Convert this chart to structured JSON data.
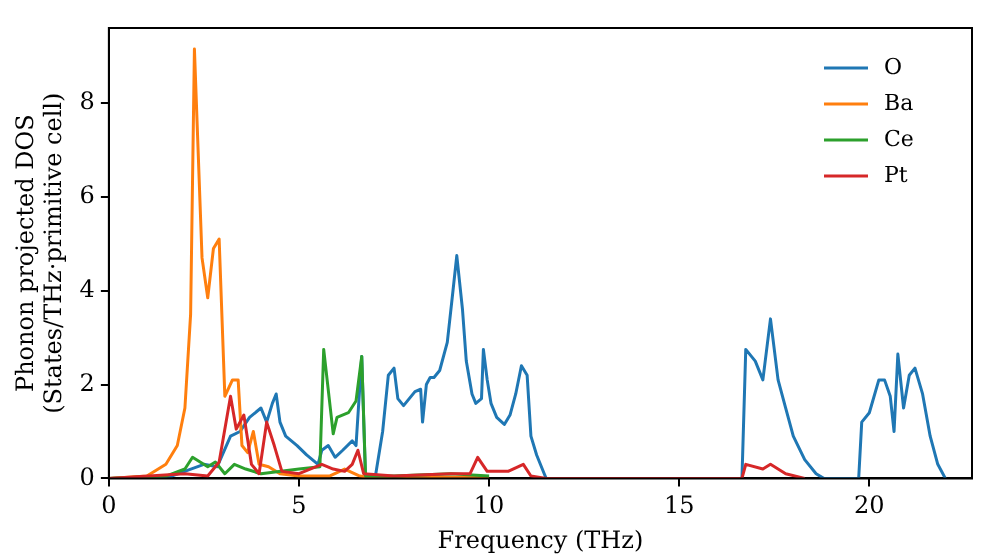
{
  "chart_data": {
    "type": "line",
    "xlabel": "Frequency (THz)",
    "ylabel": "Phonon projected DOS\n(States/THz·primitive cell)",
    "xlim": [
      0,
      22.7
    ],
    "ylim": [
      0,
      9.6
    ],
    "xticks": [
      0,
      5,
      10,
      15,
      20
    ],
    "yticks": [
      0,
      2,
      4,
      6,
      8
    ],
    "grid": false,
    "legend": "top right",
    "marker": "none",
    "line_style": "solid",
    "series": [
      {
        "name": "O",
        "color": "#1f77b4",
        "x": [
          0,
          1.65,
          2.5,
          2.85,
          3.2,
          3.45,
          3.7,
          4.0,
          4.15,
          4.3,
          4.4,
          4.5,
          4.65,
          4.95,
          5.2,
          5.5,
          5.6,
          5.77,
          5.95,
          6.15,
          6.4,
          6.5,
          6.65,
          6.75,
          7.0,
          7.2,
          7.35,
          7.5,
          7.6,
          7.75,
          7.9,
          8.05,
          8.2,
          8.25,
          8.35,
          8.45,
          8.55,
          8.7,
          8.9,
          9.05,
          9.15,
          9.3,
          9.4,
          9.55,
          9.65,
          9.8,
          9.85,
          9.95,
          10.05,
          10.2,
          10.4,
          10.55,
          10.7,
          10.85,
          11.0,
          11.1,
          11.25,
          11.45,
          11.5,
          16.65,
          16.75,
          17.0,
          17.2,
          17.4,
          17.6,
          17.8,
          18.0,
          18.3,
          18.6,
          18.8,
          19.72,
          19.8,
          20.0,
          20.25,
          20.4,
          20.55,
          20.65,
          20.75,
          20.9,
          21.05,
          21.2,
          21.4,
          21.6,
          21.8,
          22.0
        ],
        "values": [
          0,
          0.05,
          0.3,
          0.25,
          0.9,
          1.0,
          1.3,
          1.5,
          1.2,
          1.6,
          1.8,
          1.2,
          0.9,
          0.7,
          0.5,
          0.3,
          0.6,
          0.7,
          0.45,
          0.6,
          0.8,
          0.7,
          2.6,
          0,
          0,
          1.0,
          2.2,
          2.35,
          1.7,
          1.55,
          1.7,
          1.85,
          1.9,
          1.2,
          2.0,
          2.15,
          2.15,
          2.3,
          2.9,
          4.0,
          4.75,
          3.6,
          2.5,
          1.8,
          1.6,
          1.7,
          2.75,
          2.1,
          1.6,
          1.3,
          1.15,
          1.35,
          1.8,
          2.4,
          2.2,
          0.9,
          0.5,
          0.1,
          0,
          0,
          2.75,
          2.5,
          2.1,
          3.4,
          2.1,
          1.5,
          0.9,
          0.4,
          0.1,
          0,
          0,
          1.2,
          1.4,
          2.1,
          2.1,
          1.75,
          1.0,
          2.65,
          1.5,
          2.2,
          2.35,
          1.8,
          0.9,
          0.3,
          0
        ]
      },
      {
        "name": "Ba",
        "color": "#ff7f0e",
        "x": [
          0,
          1.0,
          1.5,
          1.8,
          2.0,
          2.15,
          2.25,
          2.45,
          2.6,
          2.75,
          2.9,
          3.05,
          3.25,
          3.4,
          3.5,
          3.65,
          3.8,
          3.95,
          4.2,
          4.5,
          5.0,
          5.8,
          6.2,
          6.6,
          7.0,
          8.0,
          10.0
        ],
        "values": [
          0,
          0.05,
          0.3,
          0.7,
          1.5,
          3.5,
          9.15,
          4.7,
          3.85,
          4.9,
          5.1,
          1.75,
          2.1,
          2.1,
          0.7,
          0.55,
          1.0,
          0.3,
          0.25,
          0.1,
          0.05,
          0.05,
          0.2,
          0.05,
          0,
          0.03,
          0.02
        ]
      },
      {
        "name": "Ce",
        "color": "#2ca02c",
        "x": [
          0,
          1.5,
          2.0,
          2.2,
          2.4,
          2.6,
          2.8,
          3.05,
          3.3,
          3.6,
          4.0,
          5.0,
          5.55,
          5.65,
          5.9,
          6.0,
          6.3,
          6.5,
          6.65,
          6.75,
          7.5,
          9.0,
          10.0
        ],
        "values": [
          0,
          0.05,
          0.2,
          0.45,
          0.35,
          0.25,
          0.35,
          0.1,
          0.3,
          0.2,
          0.1,
          0.2,
          0.25,
          2.75,
          0.95,
          1.3,
          1.4,
          1.65,
          2.6,
          0.05,
          0.05,
          0.1,
          0.05
        ]
      },
      {
        "name": "Pt",
        "color": "#d62728",
        "x": [
          0,
          2.0,
          2.6,
          2.9,
          3.2,
          3.35,
          3.55,
          3.75,
          3.95,
          4.15,
          4.35,
          4.55,
          5.0,
          5.6,
          5.9,
          6.2,
          6.4,
          6.55,
          6.7,
          7.5,
          9.0,
          9.5,
          9.7,
          9.95,
          10.5,
          10.9,
          11.1,
          11.5,
          16.65,
          16.75,
          17.2,
          17.4,
          17.8,
          18.3
        ],
        "values": [
          0,
          0.1,
          0.05,
          0.35,
          1.75,
          1.05,
          1.35,
          0.3,
          0.1,
          1.2,
          0.7,
          0.15,
          0.1,
          0.3,
          0.2,
          0.15,
          0.3,
          0.6,
          0.1,
          0.05,
          0.1,
          0.1,
          0.45,
          0.15,
          0.15,
          0.3,
          0.05,
          0,
          0,
          0.3,
          0.2,
          0.3,
          0.1,
          0
        ]
      }
    ]
  }
}
